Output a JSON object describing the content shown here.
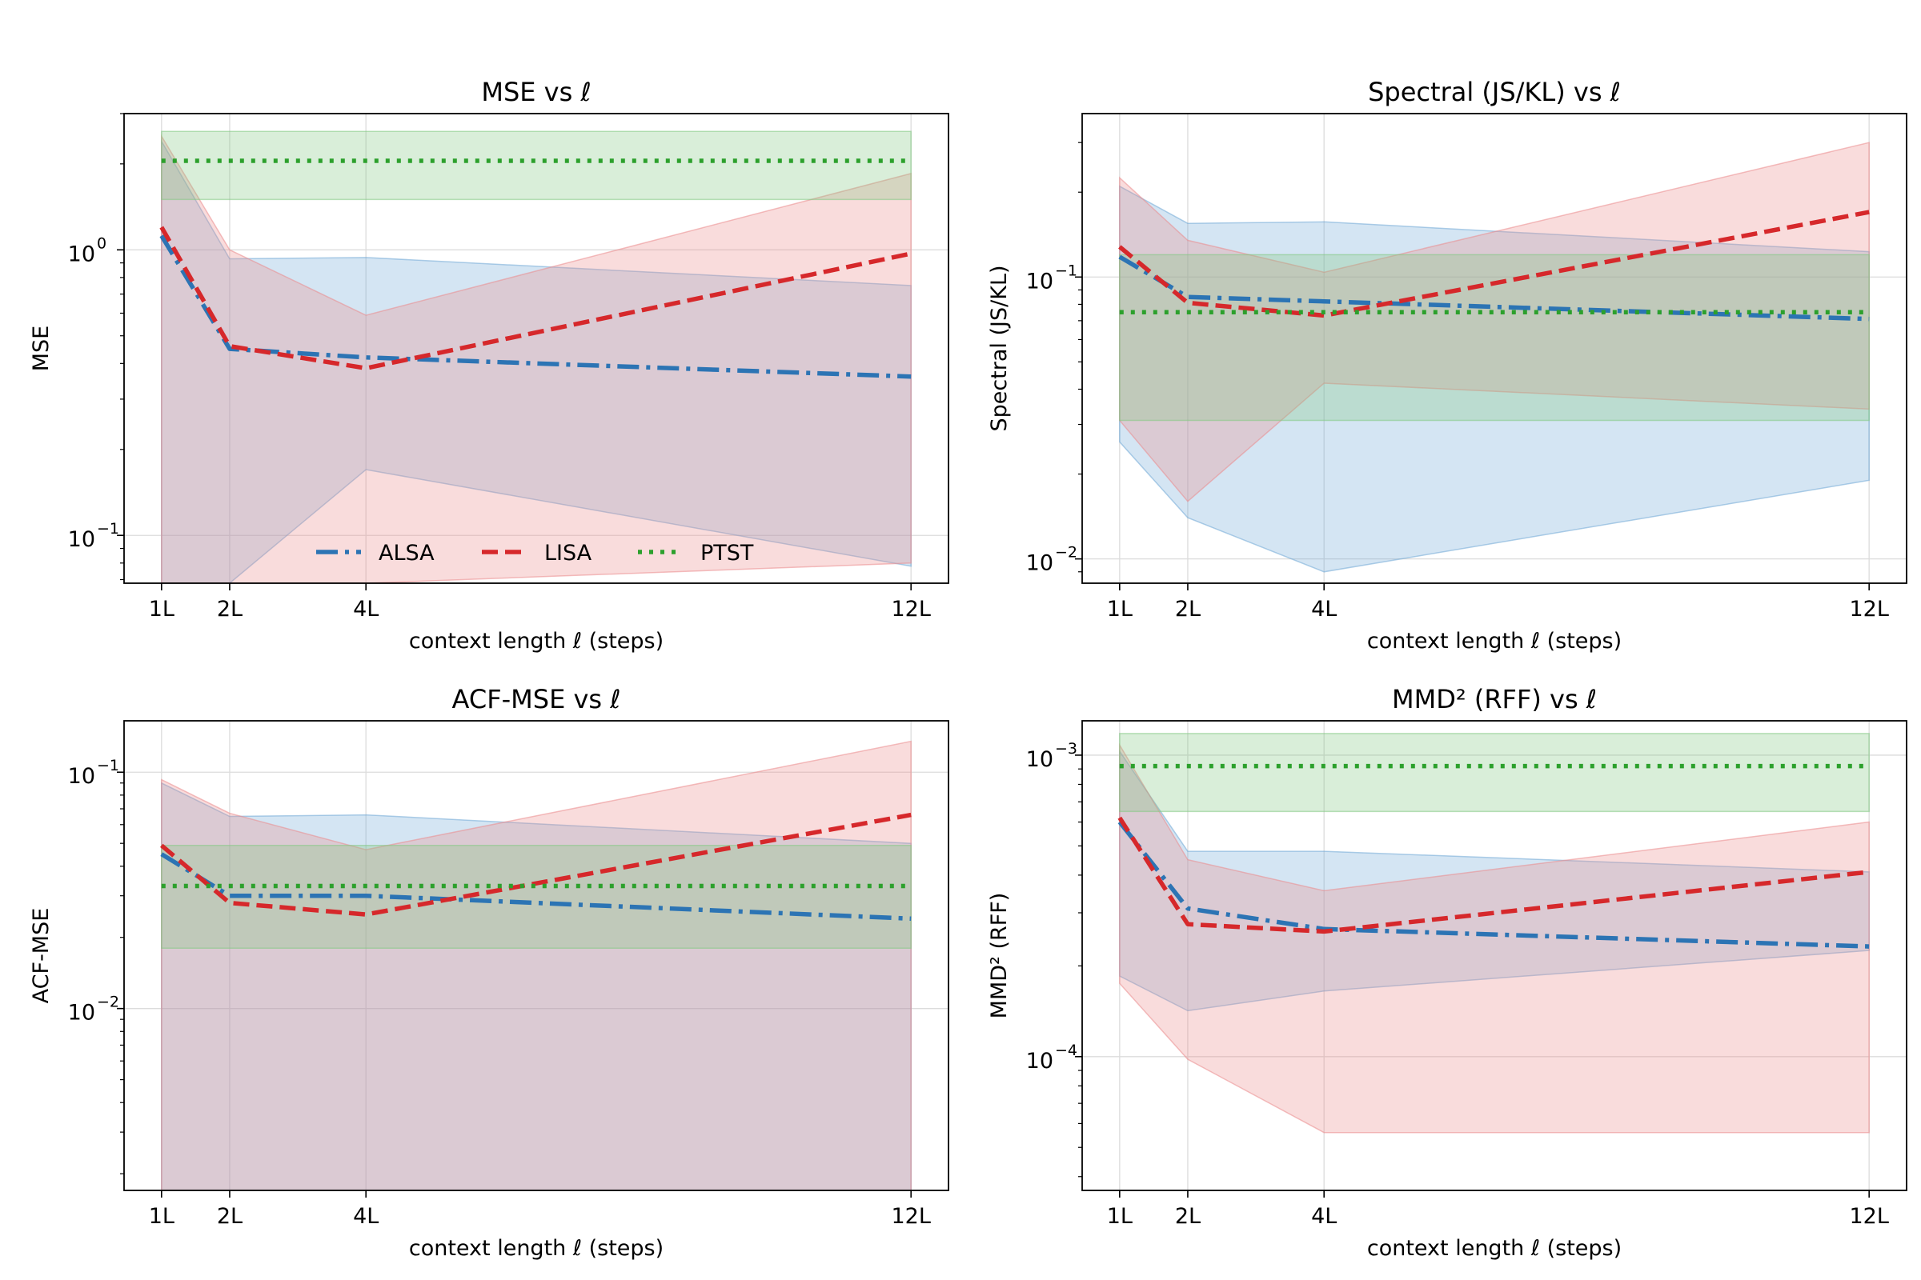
{
  "colors": {
    "ALSA": "#2c74b4",
    "LISA": "#d6282b",
    "PTST": "#2ca02c",
    "ALSA_band": "#6fa8d6",
    "LISA_band": "#eb8a8c",
    "PTST_band": "#82c882"
  },
  "legend": [
    "ALSA",
    "LISA",
    "PTST"
  ],
  "chart_data": [
    {
      "type": "line",
      "title": "MSE vs ℓ",
      "xlabel": "context length ℓ (steps)",
      "ylabel": "MSE",
      "yscale": "log",
      "ylim": [
        0.068,
        3.0
      ],
      "ytick_labels": [
        {
          "base": "10",
          "exp": "0",
          "value": 1
        },
        {
          "base": "10",
          "exp": "−1",
          "value": 0.1
        }
      ],
      "categories": [
        "1L",
        "2L",
        "4L",
        "12L"
      ],
      "x": [
        1,
        2,
        4,
        12
      ],
      "legend_location": "lower center",
      "series": [
        {
          "name": "ALSA",
          "style": "dashdot",
          "values": [
            1.12,
            0.45,
            0.42,
            0.36
          ],
          "band_low": [
            0.068,
            0.068,
            0.17,
            0.078
          ],
          "band_high": [
            2.4,
            0.93,
            0.94,
            0.75
          ]
        },
        {
          "name": "LISA",
          "style": "dashed",
          "values": [
            1.2,
            0.46,
            0.385,
            0.97
          ],
          "band_low": [
            0.068,
            0.068,
            0.068,
            0.08
          ],
          "band_high": [
            2.5,
            1.0,
            0.59,
            1.85
          ]
        },
        {
          "name": "PTST",
          "style": "dotted",
          "values": [
            2.05,
            2.05,
            2.05,
            2.05
          ],
          "band_low": [
            1.5,
            1.5,
            1.5,
            1.5
          ],
          "band_high": [
            2.6,
            2.6,
            2.6,
            2.6
          ]
        }
      ]
    },
    {
      "type": "line",
      "title": "Spectral (JS/KL) vs ℓ",
      "xlabel": "context length ℓ (steps)",
      "ylabel": "Spectral (JS/KL)",
      "yscale": "log",
      "ylim": [
        0.0082,
        0.38
      ],
      "ytick_labels": [
        {
          "base": "10",
          "exp": "−1",
          "value": 0.1
        },
        {
          "base": "10",
          "exp": "−2",
          "value": 0.01
        }
      ],
      "categories": [
        "1L",
        "2L",
        "4L",
        "12L"
      ],
      "x": [
        1,
        2,
        4,
        12
      ],
      "series": [
        {
          "name": "ALSA",
          "style": "dashdot",
          "values": [
            0.118,
            0.085,
            0.082,
            0.071
          ],
          "band_low": [
            0.026,
            0.014,
            0.009,
            0.019
          ],
          "band_high": [
            0.21,
            0.155,
            0.157,
            0.123
          ]
        },
        {
          "name": "LISA",
          "style": "dashed",
          "values": [
            0.128,
            0.081,
            0.073,
            0.17
          ],
          "band_low": [
            0.031,
            0.016,
            0.042,
            0.034
          ],
          "band_high": [
            0.225,
            0.135,
            0.104,
            0.3
          ]
        },
        {
          "name": "PTST",
          "style": "dotted",
          "values": [
            0.075,
            0.075,
            0.075,
            0.075
          ],
          "band_low": [
            0.031,
            0.031,
            0.031,
            0.031
          ],
          "band_high": [
            0.12,
            0.12,
            0.12,
            0.12
          ]
        }
      ]
    },
    {
      "type": "line",
      "title": "ACF-MSE vs ℓ",
      "xlabel": "context length ℓ (steps)",
      "ylabel": "ACF-MSE",
      "yscale": "log",
      "ylim": [
        0.0017,
        0.165
      ],
      "ytick_labels": [
        {
          "base": "10",
          "exp": "−1",
          "value": 0.1
        },
        {
          "base": "10",
          "exp": "−2",
          "value": 0.01
        }
      ],
      "categories": [
        "1L",
        "2L",
        "4L",
        "12L"
      ],
      "x": [
        1,
        2,
        4,
        12
      ],
      "series": [
        {
          "name": "ALSA",
          "style": "dashdot",
          "values": [
            0.045,
            0.03,
            0.03,
            0.024
          ],
          "band_low": [
            0.0017,
            0.0017,
            0.0017,
            0.0017
          ],
          "band_high": [
            0.09,
            0.065,
            0.066,
            0.05
          ]
        },
        {
          "name": "LISA",
          "style": "dashed",
          "values": [
            0.049,
            0.028,
            0.025,
            0.066
          ],
          "band_low": [
            0.0017,
            0.0017,
            0.0017,
            0.0017
          ],
          "band_high": [
            0.093,
            0.067,
            0.047,
            0.135
          ]
        },
        {
          "name": "PTST",
          "style": "dotted",
          "values": [
            0.033,
            0.033,
            0.033,
            0.033
          ],
          "band_low": [
            0.018,
            0.018,
            0.018,
            0.018
          ],
          "band_high": [
            0.049,
            0.049,
            0.049,
            0.049
          ]
        }
      ]
    },
    {
      "type": "line",
      "title": "MMD² (RFF) vs ℓ",
      "xlabel": "context length ℓ (steps)",
      "ylabel": "MMD² (RFF)",
      "yscale": "log",
      "ylim": [
        3.6e-05,
        0.0013
      ],
      "ytick_labels": [
        {
          "base": "10",
          "exp": "−3",
          "value": 0.001
        },
        {
          "base": "10",
          "exp": "−4",
          "value": 0.0001
        }
      ],
      "categories": [
        "1L",
        "2L",
        "4L",
        "12L"
      ],
      "x": [
        1,
        2,
        4,
        12
      ],
      "series": [
        {
          "name": "ALSA",
          "style": "dashdot",
          "values": [
            0.0006,
            0.00031,
            0.000265,
            0.000232
          ],
          "band_low": [
            0.000185,
            0.000142,
            0.000165,
            0.000225
          ],
          "band_high": [
            0.00103,
            0.00048,
            0.00048,
            0.00041
          ]
        },
        {
          "name": "LISA",
          "style": "dashed",
          "values": [
            0.00062,
            0.000275,
            0.00026,
            0.00041
          ],
          "band_low": [
            0.000175,
            9.8e-05,
            5.6e-05,
            5.6e-05
          ],
          "band_high": [
            0.00108,
            0.00045,
            0.000355,
            0.0006
          ]
        },
        {
          "name": "PTST",
          "style": "dotted",
          "values": [
            0.00092,
            0.00092,
            0.00092,
            0.00092
          ],
          "band_low": [
            0.00065,
            0.00065,
            0.00065,
            0.00065
          ],
          "band_high": [
            0.00118,
            0.00118,
            0.00118,
            0.00118
          ]
        }
      ]
    }
  ]
}
